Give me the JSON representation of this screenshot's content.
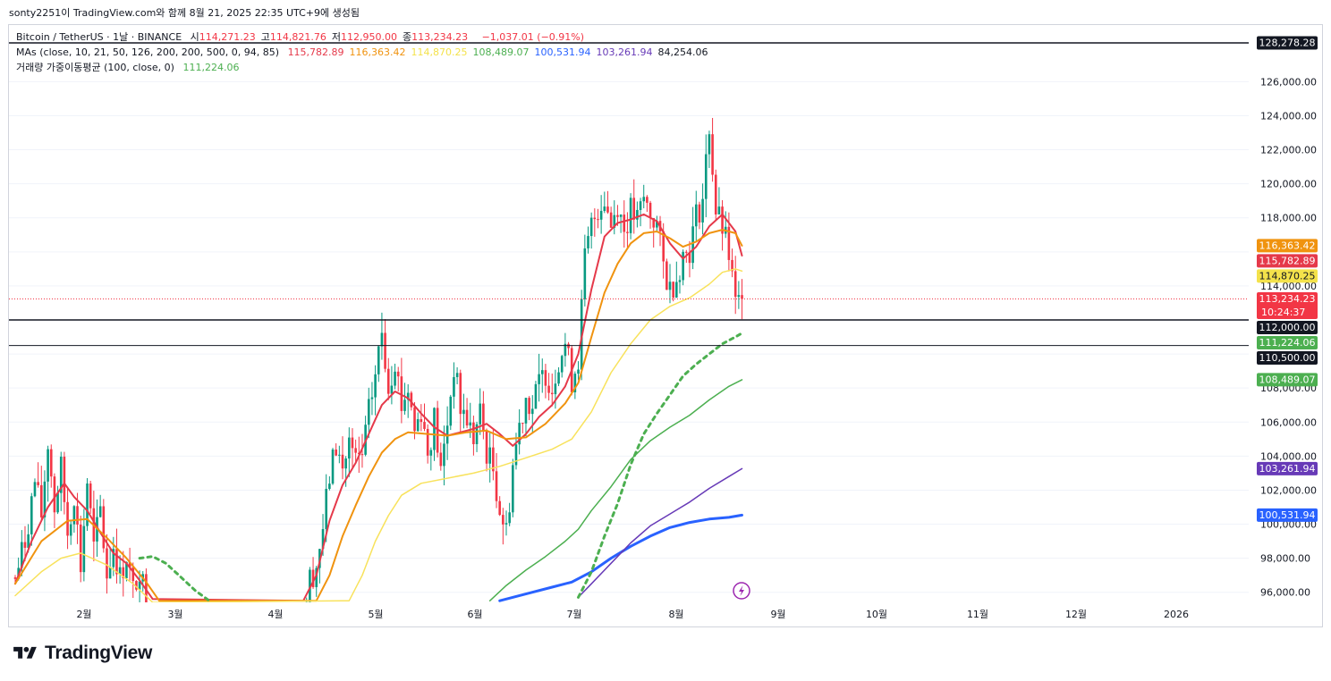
{
  "header": {
    "publish_line": "sonty2251이 TradingView.com와 함께 8월 21, 2025 22:35 UTC+9에 생성됨"
  },
  "legend": {
    "symbol": "Bitcoin / TetherUS · 1날 · BINANCE",
    "ohlc": [
      {
        "label": "시",
        "value": "114,271.23"
      },
      {
        "label": "고",
        "value": "114,821.76"
      },
      {
        "label": "저",
        "value": "112,950.00"
      },
      {
        "label": "종",
        "value": "113,234.23"
      }
    ],
    "change": "−1,037.01 (−0.91%)",
    "ma_label": "MAs (close, 10, 21, 50, 126, 200, 200, 500, 0, 94, 85)",
    "ma_values": [
      {
        "value": "115,782.89",
        "color": "#e5394a"
      },
      {
        "value": "116,363.42",
        "color": "#f0930f"
      },
      {
        "value": "114,870.25",
        "color": "#f4e24b"
      },
      {
        "value": "108,489.07",
        "color": "#4caf50"
      },
      {
        "value": "100,531.94",
        "color": "#2962ff"
      },
      {
        "value": "103,261.94",
        "color": "#673ab7"
      },
      {
        "value": "84,254.06",
        "color": "#131722"
      }
    ],
    "vwma_label": "거래량 가중이동평균 (100, close, 0)",
    "vwma_value": "111,224.06"
  },
  "colors": {
    "up": "#089981",
    "down": "#f23645",
    "ma10": "#e5394a",
    "ma21": "#f0930f",
    "ma50": "#f8e25c",
    "ma126": "#4caf50",
    "ma200": "#2962ff",
    "ma200b": "#673ab7",
    "vwma": "#4caf50",
    "hline": "#131722"
  },
  "logo_text": "TradingView",
  "icons": {
    "lightning": "lightning-icon",
    "logo": "tradingview-logo-icon"
  },
  "chart_data": {
    "type": "candlestick",
    "y_axis": {
      "ylim": [
        95500,
        128800
      ],
      "ticks": [
        "126,000.00",
        "124,000.00",
        "122,000.00",
        "120,000.00",
        "118,000.00",
        "114,000.00",
        "108,000.00",
        "106,000.00",
        "104,000.00",
        "102,000.00",
        "100,000.00",
        "98,000.00",
        "96,000.00"
      ]
    },
    "x_axis": {
      "ticks": [
        "2월",
        "3월",
        "4월",
        "5월",
        "6월",
        "7월",
        "8월",
        "9월",
        "10월",
        "11월",
        "12월",
        "2026"
      ]
    },
    "horizontal_lines": [
      128278.28,
      112000.0,
      110500.0
    ],
    "last_price": 113234.23,
    "countdown": "10:24:37",
    "price_labels": [
      {
        "text": "128,278.28",
        "value": 128278.28,
        "bg": "#131722"
      },
      {
        "text": "116,363.42",
        "value": 116363.42,
        "bg": "#f0930f"
      },
      {
        "text": "115,782.89",
        "value": 115782.89,
        "bg": "#e5394a"
      },
      {
        "text": "114,870.25",
        "value": 114870.25,
        "bg": "#f4e24b"
      },
      {
        "text": "113,234.23",
        "value": 113234.23,
        "bg": "#f23645"
      },
      {
        "text": "112,000.00",
        "value": 112000.0,
        "bg": "#131722"
      },
      {
        "text": "111,224.06",
        "value": 111224.06,
        "bg": "#4caf50"
      },
      {
        "text": "110,500.00",
        "value": 110500.0,
        "bg": "#131722"
      },
      {
        "text": "108,489.07",
        "value": 108489.07,
        "bg": "#4caf50"
      },
      {
        "text": "103,261.94",
        "value": 103261.94,
        "bg": "#673ab7"
      },
      {
        "text": "100,531.94",
        "value": 100531.94,
        "bg": "#2962ff"
      }
    ],
    "close_path": [
      [
        0,
        96800
      ],
      [
        3,
        99000
      ],
      [
        6,
        102500
      ],
      [
        8,
        100500
      ],
      [
        10,
        104800
      ],
      [
        12,
        101000
      ],
      [
        14,
        103200
      ],
      [
        16,
        99500
      ],
      [
        18,
        101800
      ],
      [
        20,
        97500
      ],
      [
        22,
        102500
      ],
      [
        24,
        98500
      ],
      [
        26,
        100800
      ],
      [
        28,
        97000
      ],
      [
        30,
        98800
      ],
      [
        32,
        96800
      ],
      [
        34,
        98200
      ],
      [
        36,
        96000
      ],
      [
        38,
        97500
      ],
      [
        40,
        95400
      ],
      [
        88,
        95600
      ],
      [
        90,
        96800
      ],
      [
        92,
        97600
      ],
      [
        94,
        99800
      ],
      [
        96,
        102800
      ],
      [
        98,
        104600
      ],
      [
        100,
        103200
      ],
      [
        102,
        104800
      ],
      [
        104,
        103500
      ],
      [
        106,
        104000
      ],
      [
        108,
        106500
      ],
      [
        110,
        108800
      ],
      [
        112,
        111300
      ],
      [
        114,
        108200
      ],
      [
        116,
        109800
      ],
      [
        118,
        107000
      ],
      [
        120,
        108000
      ],
      [
        122,
        105500
      ],
      [
        124,
        106800
      ],
      [
        126,
        104200
      ],
      [
        128,
        106200
      ],
      [
        130,
        103000
      ],
      [
        132,
        106000
      ],
      [
        134,
        109300
      ],
      [
        136,
        106800
      ],
      [
        138,
        106200
      ],
      [
        140,
        105000
      ],
      [
        142,
        106500
      ],
      [
        144,
        104300
      ],
      [
        146,
        103200
      ],
      [
        148,
        101000
      ],
      [
        150,
        99500
      ],
      [
        152,
        103500
      ],
      [
        154,
        105800
      ],
      [
        156,
        107500
      ],
      [
        158,
        106900
      ],
      [
        160,
        108200
      ],
      [
        162,
        109000
      ],
      [
        164,
        108000
      ],
      [
        166,
        109800
      ],
      [
        168,
        110600
      ],
      [
        170,
        108500
      ],
      [
        172,
        109800
      ],
      [
        174,
        115500
      ],
      [
        176,
        117500
      ],
      [
        178,
        118600
      ],
      [
        180,
        119200
      ],
      [
        182,
        117600
      ],
      [
        184,
        118900
      ],
      [
        186,
        117300
      ],
      [
        188,
        118400
      ],
      [
        190,
        117800
      ],
      [
        192,
        119100
      ],
      [
        194,
        118200
      ],
      [
        196,
        117600
      ],
      [
        198,
        115200
      ],
      [
        200,
        113800
      ],
      [
        202,
        114600
      ],
      [
        204,
        115800
      ],
      [
        206,
        116200
      ],
      [
        208,
        118100
      ],
      [
        210,
        119100
      ],
      [
        212,
        123400
      ],
      [
        214,
        118400
      ],
      [
        216,
        117400
      ],
      [
        218,
        115800
      ],
      [
        220,
        112800
      ],
      [
        222,
        113234.23
      ]
    ]
  }
}
